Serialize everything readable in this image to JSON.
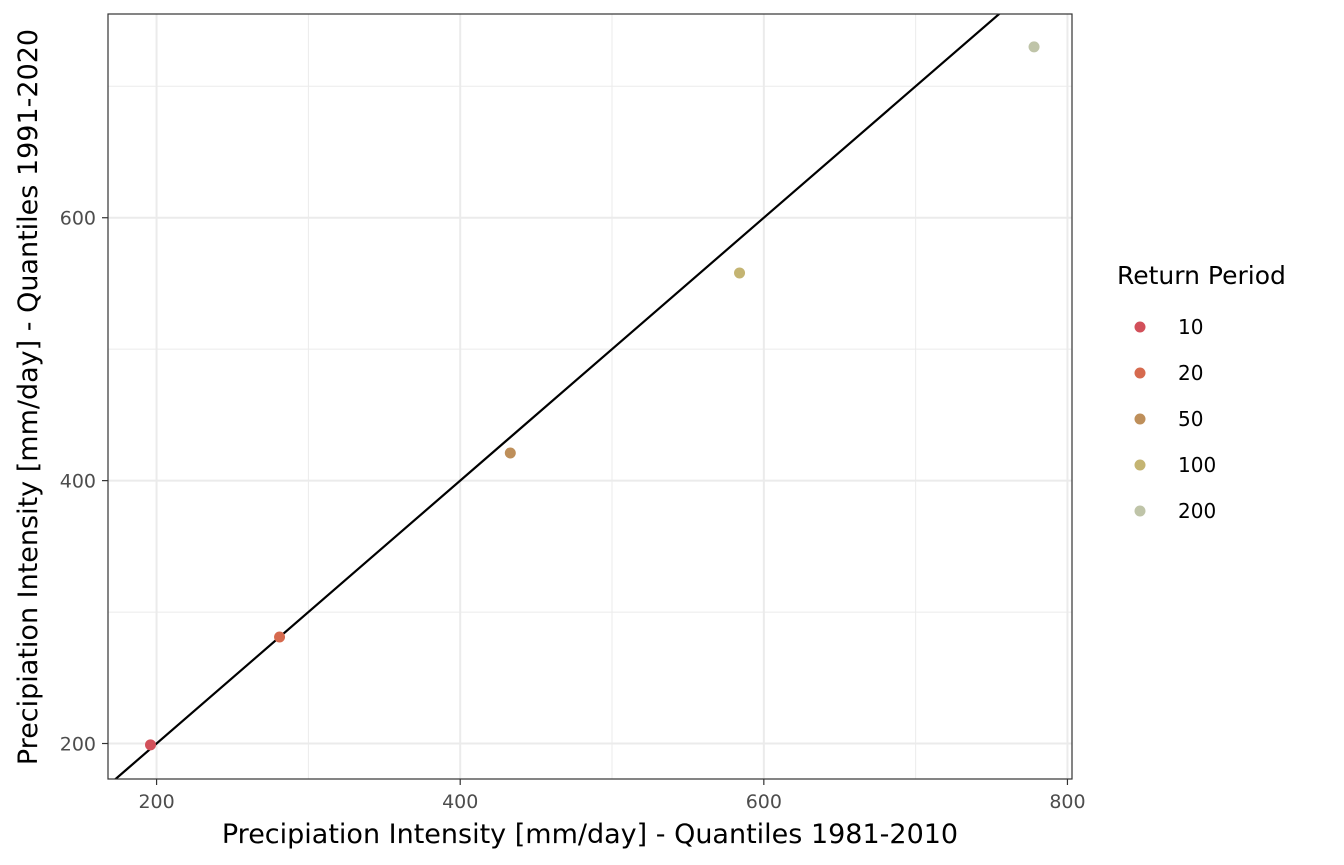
{
  "chart_data": {
    "type": "scatter",
    "xlabel": "Precipiation Intensity [mm/day] - Quantiles 1981-2010",
    "ylabel": "Precipiation Intensity [mm/day] - Quantiles 1991-2020",
    "xlim": [
      168,
      803
    ],
    "ylim": [
      173,
      755
    ],
    "x_ticks": [
      200,
      400,
      600,
      800
    ],
    "y_ticks": [
      200,
      400,
      600
    ],
    "x_tick_labels": [
      "200",
      "400",
      "600",
      "800"
    ],
    "y_tick_labels": [
      "200",
      "400",
      "600"
    ],
    "grid": true,
    "reference_line": {
      "slope": 1,
      "intercept": 0,
      "color": "#000000"
    },
    "legend": {
      "title": "Return Period",
      "position": "right"
    },
    "series": [
      {
        "name": "10",
        "color": "#D2505A",
        "x": 196,
        "y": 199
      },
      {
        "name": "20",
        "color": "#D66A4E",
        "x": 281,
        "y": 281
      },
      {
        "name": "50",
        "color": "#BE8F5A",
        "x": 433,
        "y": 421
      },
      {
        "name": "100",
        "color": "#C4B472",
        "x": 584,
        "y": 558
      },
      {
        "name": "200",
        "color": "#BFC4A8",
        "x": 778,
        "y": 730
      }
    ]
  }
}
